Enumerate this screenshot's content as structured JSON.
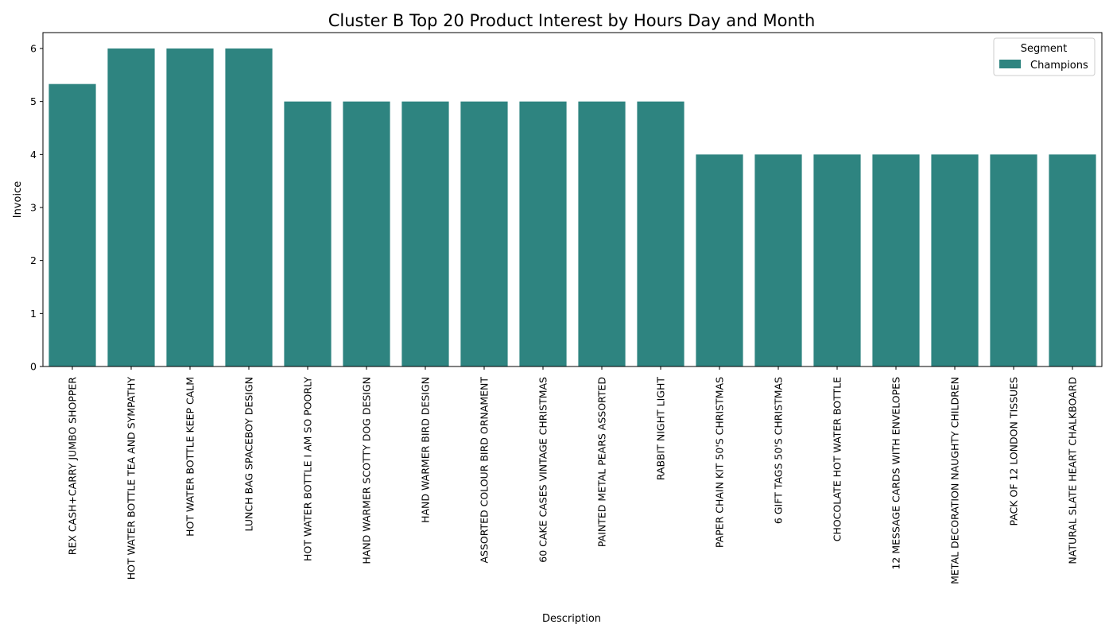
{
  "chart_data": {
    "type": "bar",
    "title": "Cluster B Top 20 Product Interest by Hours Day and Month",
    "xlabel": "Description",
    "ylabel": "Invoice",
    "ylim": [
      0,
      6.3
    ],
    "yticks": [
      "0",
      "1",
      "2",
      "3",
      "4",
      "5",
      "6"
    ],
    "grid": false,
    "categories": [
      "REX CASH+CARRY JUMBO SHOPPER",
      "HOT WATER BOTTLE TEA AND SYMPATHY",
      "HOT WATER BOTTLE KEEP CALM",
      "LUNCH BAG SPACEBOY DESIGN",
      "HOT WATER BOTTLE I AM SO POORLY",
      "HAND WARMER SCOTTY DOG DESIGN",
      "HAND WARMER BIRD DESIGN",
      "ASSORTED COLOUR BIRD ORNAMENT",
      "60 CAKE CASES VINTAGE CHRISTMAS",
      "PAINTED METAL PEARS ASSORTED",
      "RABBIT NIGHT LIGHT",
      "PAPER CHAIN KIT 50'S CHRISTMAS",
      "6 GIFT TAGS 50'S CHRISTMAS",
      "CHOCOLATE HOT WATER BOTTLE",
      "12 MESSAGE CARDS WITH ENVELOPES",
      "METAL DECORATION NAUGHTY CHILDREN",
      "PACK OF 12 LONDON TISSUES",
      "NATURAL SLATE HEART CHALKBOARD"
    ],
    "series": [
      {
        "name": "Champions",
        "color": "#2e8480",
        "values": [
          5.33,
          6,
          6,
          6,
          5,
          5,
          5,
          5,
          5,
          5,
          5,
          4,
          4,
          4,
          4,
          4,
          4,
          4
        ]
      }
    ],
    "legend": {
      "title": "Segment",
      "placement": "top-right"
    }
  }
}
